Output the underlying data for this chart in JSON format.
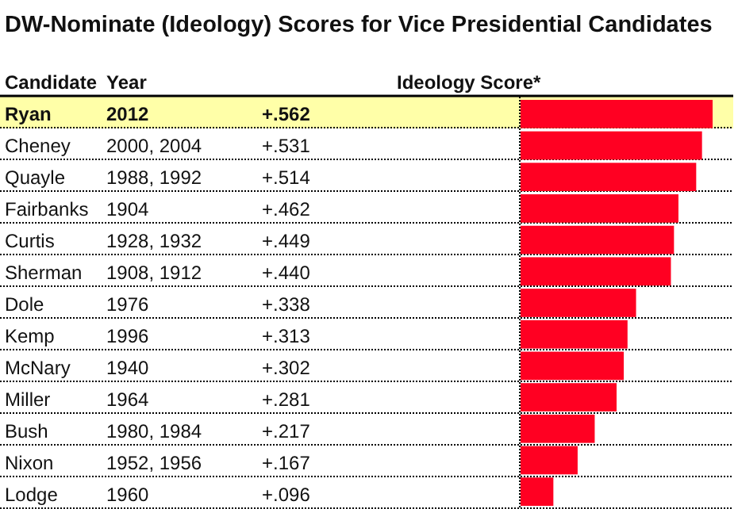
{
  "chart_data": {
    "type": "bar",
    "orientation": "horizontal",
    "title": "DW-Nominate (Ideology) Scores for Vice Presidential Candidates",
    "ylabel": "Candidate",
    "xlabel": "Ideology Score*",
    "categories": [
      "Ryan",
      "Cheney",
      "Quayle",
      "Fairbanks",
      "Curtis",
      "Sherman",
      "Dole",
      "Kemp",
      "McNary",
      "Miller",
      "Bush",
      "Nixon",
      "Lodge"
    ],
    "values": [
      0.562,
      0.531,
      0.514,
      0.462,
      0.449,
      0.44,
      0.338,
      0.313,
      0.302,
      0.281,
      0.217,
      0.167,
      0.096
    ],
    "value_labels": [
      "+.562",
      "+.531",
      "+.514",
      "+.462",
      "+.449",
      "+.440",
      "+.338",
      "+.313",
      "+.302",
      "+.281",
      "+.217",
      "+.167",
      "+.096"
    ],
    "color": "#ff0022",
    "tick_labels": false,
    "bands": [
      {
        "axis": "y",
        "from": "Ryan",
        "to": "Ryan",
        "color": "#ffffa8"
      }
    ],
    "annotations": [
      "Year",
      "2012",
      "2000, 2004",
      "1988, 1992",
      "1904",
      "1928, 1932",
      "1908, 1912",
      "1976",
      "1996",
      "1940",
      "1964",
      "1980, 1984",
      "1952, 1956",
      "1960"
    ]
  }
}
